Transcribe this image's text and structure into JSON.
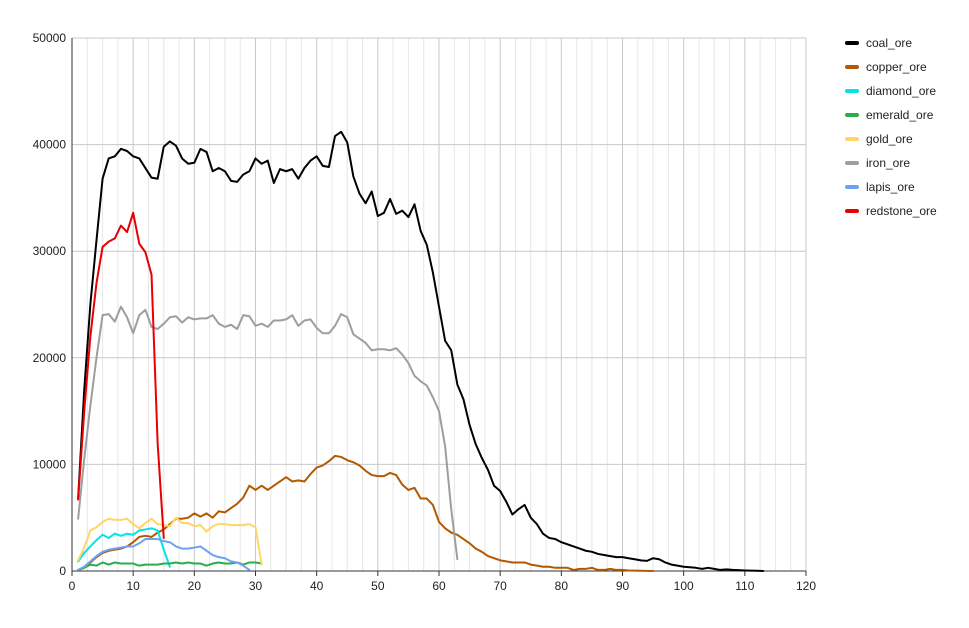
{
  "chart_data": {
    "type": "line",
    "title": "",
    "xlabel": "",
    "ylabel": "",
    "xlim": [
      0,
      120
    ],
    "ylim": [
      0,
      50000
    ],
    "x_ticks": [
      "0",
      "10",
      "20",
      "30",
      "40",
      "50",
      "60",
      "70",
      "80",
      "90",
      "100",
      "110",
      "120"
    ],
    "y_ticks": [
      "0",
      "10000",
      "20000",
      "30000",
      "40000",
      "50000"
    ],
    "grid": true,
    "legend_position": "right",
    "series": [
      {
        "name": "coal_ore",
        "color": "#000000",
        "x": [
          1,
          2,
          3,
          4,
          5,
          6,
          7,
          8,
          9,
          10,
          11,
          12,
          13,
          14,
          15,
          16,
          17,
          18,
          19,
          20,
          21,
          22,
          23,
          24,
          25,
          26,
          27,
          28,
          29,
          30,
          31,
          32,
          33,
          34,
          35,
          36,
          37,
          38,
          39,
          40,
          41,
          42,
          43,
          44,
          45,
          46,
          47,
          48,
          49,
          50,
          51,
          52,
          53,
          54,
          55,
          56,
          57,
          58,
          59,
          60,
          61,
          62,
          63,
          64,
          65,
          66,
          67,
          68,
          69,
          70,
          71,
          72,
          73,
          74,
          75,
          76,
          77,
          78,
          79,
          80,
          81,
          82,
          83,
          84,
          85,
          86,
          87,
          88,
          89,
          90,
          91,
          92,
          93,
          94,
          95,
          96,
          97,
          98,
          99,
          100,
          101,
          102,
          103,
          104,
          105,
          106,
          107,
          108,
          109,
          110,
          111,
          112,
          113
        ],
        "y": [
          6800,
          17000,
          25000,
          31000,
          36800,
          38700,
          38900,
          39600,
          39400,
          38900,
          38700,
          37800,
          36900,
          36800,
          39800,
          40300,
          39900,
          38700,
          38200,
          38300,
          39600,
          39300,
          37500,
          37800,
          37500,
          36600,
          36500,
          37200,
          37500,
          38700,
          38200,
          38500,
          36400,
          37700,
          37500,
          37700,
          36800,
          37800,
          38500,
          38900,
          38000,
          37900,
          40800,
          41200,
          40200,
          37000,
          35400,
          34500,
          35600,
          33300,
          33600,
          34900,
          33500,
          33800,
          33200,
          34400,
          31900,
          30600,
          28000,
          24800,
          21600,
          20700,
          17500,
          16100,
          13700,
          11900,
          10600,
          9500,
          8000,
          7500,
          6500,
          5300,
          5800,
          6200,
          5000,
          4400,
          3500,
          3100,
          3000,
          2700,
          2500,
          2300,
          2100,
          1900,
          1800,
          1600,
          1500,
          1400,
          1300,
          1300,
          1200,
          1100,
          1000,
          950,
          1200,
          1100,
          800,
          600,
          500,
          400,
          350,
          300,
          200,
          300,
          200,
          100,
          150,
          100,
          80,
          50,
          30,
          20,
          0
        ]
      },
      {
        "name": "copper_ore",
        "color": "#b35900",
        "x": [
          1,
          2,
          3,
          4,
          5,
          6,
          7,
          8,
          9,
          10,
          11,
          12,
          13,
          14,
          15,
          16,
          17,
          18,
          19,
          20,
          21,
          22,
          23,
          24,
          25,
          26,
          27,
          28,
          29,
          30,
          31,
          32,
          33,
          34,
          35,
          36,
          37,
          38,
          39,
          40,
          41,
          42,
          43,
          44,
          45,
          46,
          47,
          48,
          49,
          50,
          51,
          52,
          53,
          54,
          55,
          56,
          57,
          58,
          59,
          60,
          61,
          62,
          63,
          64,
          65,
          66,
          67,
          68,
          69,
          70,
          71,
          72,
          73,
          74,
          75,
          76,
          77,
          78,
          79,
          80,
          81,
          82,
          83,
          84,
          85,
          86,
          87,
          88,
          89,
          90,
          91,
          92,
          93,
          94,
          95
        ],
        "y": [
          100,
          300,
          800,
          1300,
          1700,
          1900,
          2000,
          2100,
          2300,
          2700,
          3200,
          3300,
          3200,
          3600,
          3900,
          4400,
          4900,
          4900,
          5000,
          5400,
          5100,
          5400,
          5000,
          5600,
          5500,
          5900,
          6300,
          6900,
          8000,
          7600,
          8000,
          7600,
          8000,
          8400,
          8800,
          8400,
          8500,
          8400,
          9100,
          9700,
          9900,
          10300,
          10800,
          10700,
          10400,
          10200,
          9900,
          9400,
          9000,
          8900,
          8900,
          9200,
          9000,
          8100,
          7600,
          7800,
          6800,
          6800,
          6200,
          4600,
          4000,
          3600,
          3400,
          3000,
          2600,
          2100,
          1800,
          1400,
          1200,
          1000,
          900,
          800,
          800,
          800,
          600,
          500,
          400,
          400,
          300,
          300,
          300,
          100,
          200,
          200,
          300,
          100,
          100,
          200,
          100,
          100,
          50,
          30,
          20,
          10,
          0
        ]
      },
      {
        "name": "diamond_ore",
        "color": "#00e5e5",
        "x": [
          1,
          2,
          3,
          4,
          5,
          6,
          7,
          8,
          9,
          10,
          11,
          12,
          13,
          14,
          15,
          16
        ],
        "y": [
          900,
          1700,
          2300,
          2900,
          3400,
          3100,
          3500,
          3300,
          3500,
          3400,
          3800,
          3900,
          4000,
          3800,
          2000,
          400
        ]
      },
      {
        "name": "emerald_ore",
        "color": "#2bad4a",
        "x": [
          1,
          2,
          3,
          4,
          5,
          6,
          7,
          8,
          9,
          10,
          11,
          12,
          13,
          14,
          15,
          16,
          17,
          18,
          19,
          20,
          21,
          22,
          23,
          24,
          25,
          26,
          27,
          28,
          29,
          30,
          31
        ],
        "y": [
          100,
          300,
          600,
          500,
          800,
          600,
          800,
          700,
          700,
          700,
          500,
          600,
          600,
          600,
          700,
          700,
          800,
          700,
          800,
          700,
          700,
          500,
          700,
          800,
          700,
          700,
          800,
          600,
          800,
          800,
          700
        ]
      },
      {
        "name": "gold_ore",
        "color": "#ffd666",
        "x": [
          1,
          2,
          3,
          4,
          5,
          6,
          7,
          8,
          9,
          10,
          11,
          12,
          13,
          14,
          15,
          16,
          17,
          18,
          19,
          20,
          21,
          22,
          23,
          24,
          25,
          26,
          27,
          28,
          29,
          30,
          31
        ],
        "y": [
          1000,
          2200,
          3800,
          4100,
          4600,
          4900,
          4800,
          4800,
          4900,
          4400,
          4000,
          4500,
          4900,
          4400,
          4300,
          4200,
          5000,
          4500,
          4500,
          4200,
          4300,
          3700,
          4200,
          4400,
          4400,
          4300,
          4300,
          4300,
          4400,
          4100,
          600
        ]
      },
      {
        "name": "iron_ore",
        "color": "#9e9e9e",
        "x": [
          1,
          2,
          3,
          4,
          5,
          6,
          7,
          8,
          9,
          10,
          11,
          12,
          13,
          14,
          15,
          16,
          17,
          18,
          19,
          20,
          21,
          22,
          23,
          24,
          25,
          26,
          27,
          28,
          29,
          30,
          31,
          32,
          33,
          34,
          35,
          36,
          37,
          38,
          39,
          40,
          41,
          42,
          43,
          44,
          45,
          46,
          47,
          48,
          49,
          50,
          51,
          52,
          53,
          54,
          55,
          56,
          57,
          58,
          59,
          60,
          61,
          62,
          63
        ],
        "y": [
          4900,
          10500,
          15500,
          20000,
          24000,
          24100,
          23400,
          24800,
          23800,
          22300,
          24000,
          24500,
          22900,
          22700,
          23200,
          23800,
          23900,
          23300,
          23800,
          23600,
          23700,
          23700,
          24000,
          23200,
          22900,
          23100,
          22700,
          24000,
          23900,
          23000,
          23200,
          22900,
          23500,
          23500,
          23600,
          24000,
          23000,
          23500,
          23600,
          22800,
          22300,
          22300,
          23000,
          24100,
          23800,
          22200,
          21800,
          21400,
          20700,
          20800,
          20800,
          20700,
          20900,
          20300,
          19500,
          18300,
          17800,
          17400,
          16300,
          15000,
          11700,
          5800,
          1100
        ]
      },
      {
        "name": "lapis_ore",
        "color": "#6fa1f2",
        "x": [
          1,
          2,
          3,
          4,
          5,
          6,
          7,
          8,
          9,
          10,
          11,
          12,
          13,
          14,
          15,
          16,
          17,
          18,
          19,
          20,
          21,
          22,
          23,
          24,
          25,
          26,
          27,
          28,
          29
        ],
        "y": [
          100,
          400,
          900,
          1400,
          1800,
          2000,
          2100,
          2200,
          2300,
          2300,
          2600,
          3000,
          3000,
          3000,
          2800,
          2700,
          2300,
          2100,
          2100,
          2200,
          2300,
          1900,
          1500,
          1300,
          1200,
          900,
          800,
          500,
          100
        ]
      },
      {
        "name": "redstone_ore",
        "color": "#e60000",
        "x": [
          1,
          2,
          3,
          4,
          5,
          6,
          7,
          8,
          9,
          10,
          11,
          12,
          13,
          14,
          15
        ],
        "y": [
          6700,
          15000,
          22000,
          27000,
          30400,
          30900,
          31200,
          32400,
          31800,
          33600,
          30700,
          29900,
          27800,
          12000,
          3100
        ]
      }
    ]
  }
}
